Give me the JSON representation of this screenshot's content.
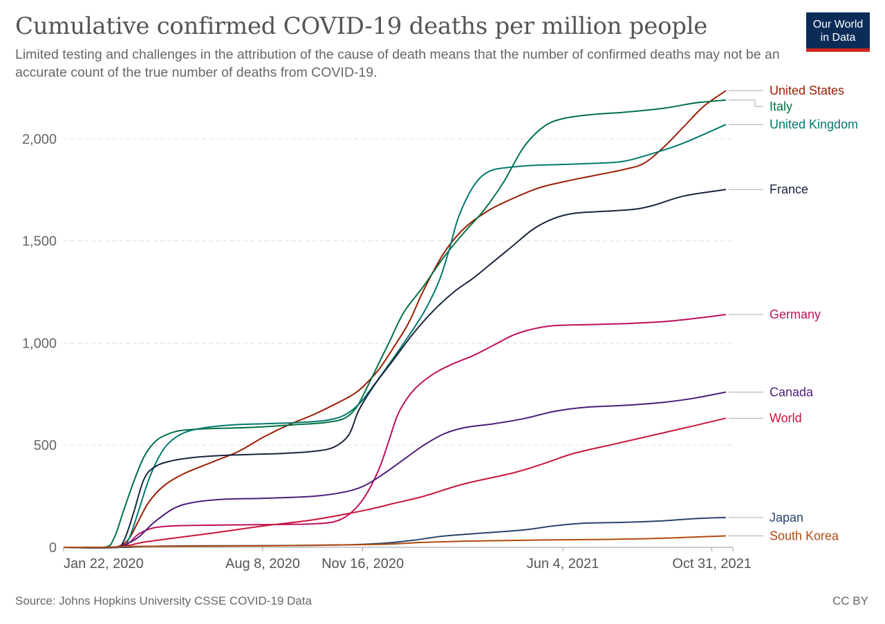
{
  "chart_data": {
    "type": "line",
    "title": "Cumulative confirmed COVID-19 deaths per million people",
    "subtitle": "Limited testing and challenges in the attribution of the cause of death means that the number of confirmed deaths may not be an accurate count of the true number of deaths from COVID-19.",
    "xlabel": "",
    "ylabel": "",
    "xlim_day": [
      0,
      669
    ],
    "ylim": [
      0,
      2240
    ],
    "grid": "horizontal dashed",
    "x_ticks": [
      {
        "day": 0,
        "label": "Jan 22, 2020"
      },
      {
        "day": 199,
        "label": "Aug 8, 2020"
      },
      {
        "day": 299,
        "label": "Nov 16, 2020"
      },
      {
        "day": 499,
        "label": "Jun 4, 2021"
      },
      {
        "day": 648,
        "label": "Oct 31, 2021"
      }
    ],
    "y_ticks": [
      {
        "value": 0,
        "label": "0"
      },
      {
        "value": 500,
        "label": "500"
      },
      {
        "value": 1000,
        "label": "1,000"
      },
      {
        "value": 1500,
        "label": "1,500"
      },
      {
        "value": 2000,
        "label": "2,000"
      }
    ],
    "series": [
      {
        "name": "United States",
        "color": "#9a1d03",
        "points": [
          [
            0,
            0
          ],
          [
            45,
            0
          ],
          [
            55,
            5
          ],
          [
            65,
            40
          ],
          [
            75,
            130
          ],
          [
            85,
            220
          ],
          [
            100,
            300
          ],
          [
            120,
            360
          ],
          [
            150,
            420
          ],
          [
            175,
            470
          ],
          [
            200,
            540
          ],
          [
            225,
            600
          ],
          [
            250,
            650
          ],
          [
            275,
            710
          ],
          [
            290,
            750
          ],
          [
            300,
            790
          ],
          [
            315,
            870
          ],
          [
            330,
            980
          ],
          [
            345,
            1100
          ],
          [
            360,
            1260
          ],
          [
            380,
            1440
          ],
          [
            400,
            1560
          ],
          [
            425,
            1650
          ],
          [
            450,
            1710
          ],
          [
            475,
            1760
          ],
          [
            500,
            1790
          ],
          [
            530,
            1820
          ],
          [
            560,
            1850
          ],
          [
            580,
            1880
          ],
          [
            600,
            1960
          ],
          [
            620,
            2060
          ],
          [
            640,
            2160
          ],
          [
            662,
            2236
          ]
        ]
      },
      {
        "name": "Italy",
        "color": "#007042",
        "points": [
          [
            0,
            0
          ],
          [
            40,
            0
          ],
          [
            50,
            40
          ],
          [
            60,
            180
          ],
          [
            70,
            320
          ],
          [
            80,
            440
          ],
          [
            90,
            510
          ],
          [
            100,
            545
          ],
          [
            115,
            570
          ],
          [
            140,
            580
          ],
          [
            175,
            585
          ],
          [
            200,
            590
          ],
          [
            230,
            600
          ],
          [
            260,
            610
          ],
          [
            280,
            630
          ],
          [
            292,
            680
          ],
          [
            300,
            750
          ],
          [
            310,
            850
          ],
          [
            325,
            1000
          ],
          [
            340,
            1150
          ],
          [
            360,
            1280
          ],
          [
            380,
            1420
          ],
          [
            400,
            1540
          ],
          [
            420,
            1650
          ],
          [
            440,
            1790
          ],
          [
            460,
            1960
          ],
          [
            480,
            2060
          ],
          [
            500,
            2100
          ],
          [
            530,
            2120
          ],
          [
            560,
            2130
          ],
          [
            600,
            2150
          ],
          [
            630,
            2175
          ],
          [
            662,
            2190
          ]
        ]
      },
      {
        "name": "United Kingdom",
        "color": "#00786f",
        "points": [
          [
            0,
            0
          ],
          [
            55,
            0
          ],
          [
            65,
            40
          ],
          [
            75,
            180
          ],
          [
            85,
            330
          ],
          [
            95,
            440
          ],
          [
            105,
            510
          ],
          [
            120,
            560
          ],
          [
            140,
            585
          ],
          [
            170,
            600
          ],
          [
            200,
            605
          ],
          [
            230,
            610
          ],
          [
            260,
            620
          ],
          [
            280,
            645
          ],
          [
            295,
            700
          ],
          [
            305,
            760
          ],
          [
            320,
            860
          ],
          [
            340,
            1000
          ],
          [
            360,
            1150
          ],
          [
            375,
            1300
          ],
          [
            385,
            1450
          ],
          [
            395,
            1620
          ],
          [
            410,
            1770
          ],
          [
            425,
            1840
          ],
          [
            445,
            1860
          ],
          [
            470,
            1870
          ],
          [
            500,
            1875
          ],
          [
            530,
            1880
          ],
          [
            560,
            1890
          ],
          [
            590,
            1930
          ],
          [
            620,
            1980
          ],
          [
            662,
            2070
          ]
        ]
      },
      {
        "name": "France",
        "color": "#18243e",
        "points": [
          [
            0,
            0
          ],
          [
            50,
            0
          ],
          [
            60,
            30
          ],
          [
            70,
            170
          ],
          [
            80,
            330
          ],
          [
            90,
            390
          ],
          [
            105,
            420
          ],
          [
            130,
            440
          ],
          [
            160,
            450
          ],
          [
            190,
            455
          ],
          [
            220,
            460
          ],
          [
            250,
            470
          ],
          [
            270,
            490
          ],
          [
            285,
            550
          ],
          [
            295,
            670
          ],
          [
            310,
            790
          ],
          [
            330,
            920
          ],
          [
            350,
            1050
          ],
          [
            370,
            1160
          ],
          [
            390,
            1250
          ],
          [
            410,
            1320
          ],
          [
            430,
            1400
          ],
          [
            450,
            1480
          ],
          [
            470,
            1560
          ],
          [
            490,
            1610
          ],
          [
            510,
            1635
          ],
          [
            540,
            1645
          ],
          [
            570,
            1655
          ],
          [
            590,
            1675
          ],
          [
            620,
            1720
          ],
          [
            662,
            1752
          ]
        ]
      },
      {
        "name": "Germany",
        "color": "#be0f5a",
        "points": [
          [
            0,
            0
          ],
          [
            55,
            0
          ],
          [
            65,
            20
          ],
          [
            75,
            65
          ],
          [
            90,
            95
          ],
          [
            110,
            105
          ],
          [
            140,
            108
          ],
          [
            180,
            110
          ],
          [
            220,
            112
          ],
          [
            250,
            115
          ],
          [
            270,
            125
          ],
          [
            285,
            160
          ],
          [
            300,
            240
          ],
          [
            315,
            380
          ],
          [
            325,
            520
          ],
          [
            335,
            660
          ],
          [
            350,
            770
          ],
          [
            370,
            850
          ],
          [
            390,
            900
          ],
          [
            410,
            940
          ],
          [
            430,
            990
          ],
          [
            450,
            1040
          ],
          [
            470,
            1070
          ],
          [
            490,
            1085
          ],
          [
            520,
            1090
          ],
          [
            560,
            1095
          ],
          [
            600,
            1105
          ],
          [
            630,
            1120
          ],
          [
            662,
            1140
          ]
        ]
      },
      {
        "name": "Canada",
        "color": "#4c1d7a",
        "points": [
          [
            0,
            0
          ],
          [
            50,
            0
          ],
          [
            60,
            10
          ],
          [
            75,
            50
          ],
          [
            90,
            120
          ],
          [
            110,
            190
          ],
          [
            130,
            220
          ],
          [
            160,
            235
          ],
          [
            200,
            240
          ],
          [
            250,
            250
          ],
          [
            280,
            270
          ],
          [
            300,
            300
          ],
          [
            320,
            360
          ],
          [
            340,
            430
          ],
          [
            360,
            500
          ],
          [
            380,
            555
          ],
          [
            400,
            585
          ],
          [
            430,
            605
          ],
          [
            460,
            630
          ],
          [
            490,
            665
          ],
          [
            520,
            685
          ],
          [
            560,
            695
          ],
          [
            600,
            710
          ],
          [
            630,
            730
          ],
          [
            662,
            760
          ]
        ]
      },
      {
        "name": "World",
        "color": "#c8163a",
        "points": [
          [
            0,
            0
          ],
          [
            40,
            0
          ],
          [
            60,
            5
          ],
          [
            80,
            25
          ],
          [
            110,
            45
          ],
          [
            150,
            70
          ],
          [
            200,
            105
          ],
          [
            250,
            135
          ],
          [
            300,
            180
          ],
          [
            330,
            215
          ],
          [
            360,
            250
          ],
          [
            400,
            310
          ],
          [
            450,
            365
          ],
          [
            480,
            410
          ],
          [
            510,
            460
          ],
          [
            550,
            505
          ],
          [
            590,
            550
          ],
          [
            630,
            595
          ],
          [
            662,
            632
          ]
        ]
      },
      {
        "name": "Japan",
        "color": "#29446e",
        "points": [
          [
            0,
            0
          ],
          [
            60,
            0
          ],
          [
            80,
            4
          ],
          [
            120,
            7
          ],
          [
            200,
            8
          ],
          [
            280,
            12
          ],
          [
            320,
            20
          ],
          [
            350,
            35
          ],
          [
            380,
            55
          ],
          [
            420,
            70
          ],
          [
            460,
            85
          ],
          [
            490,
            105
          ],
          [
            520,
            118
          ],
          [
            560,
            122
          ],
          [
            600,
            130
          ],
          [
            630,
            140
          ],
          [
            662,
            146
          ]
        ]
      },
      {
        "name": "South Korea",
        "color": "#b04a0e",
        "points": [
          [
            0,
            0
          ],
          [
            40,
            0
          ],
          [
            60,
            4
          ],
          [
            90,
            5
          ],
          [
            150,
            6
          ],
          [
            250,
            9
          ],
          [
            320,
            15
          ],
          [
            360,
            24
          ],
          [
            400,
            30
          ],
          [
            440,
            33
          ],
          [
            480,
            36
          ],
          [
            530,
            38
          ],
          [
            580,
            42
          ],
          [
            620,
            48
          ],
          [
            662,
            56
          ]
        ]
      }
    ],
    "legend": "right-side direct labels"
  },
  "header": {
    "title": "Cumulative confirmed COVID-19 deaths per million people",
    "subtitle": "Limited testing and challenges in the attribution of the cause of death means that the number of confirmed deaths may not be an accurate count of the true number of deaths from COVID-19.",
    "logo_line1": "Our World",
    "logo_line2": "in Data"
  },
  "footer": {
    "source": "Source: Johns Hopkins University CSSE COVID-19 Data",
    "license": "CC BY"
  }
}
